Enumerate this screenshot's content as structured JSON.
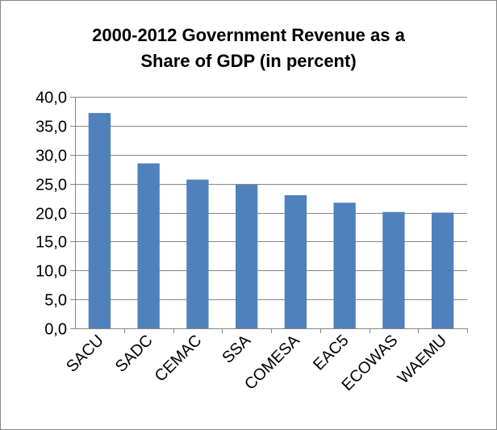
{
  "chart_data": {
    "type": "bar",
    "title_lines": [
      "2000-2012 Government Revenue as a",
      "Share of GDP (in percent)"
    ],
    "categories": [
      "SACU",
      "SADC",
      "CEMAC",
      "SSA",
      "COMESA",
      "EAC5",
      "ECOWAS",
      "WAEMU"
    ],
    "values": [
      37.2,
      28.5,
      25.7,
      24.8,
      23.0,
      21.7,
      20.1,
      20.0
    ],
    "yticks": [
      "0,0",
      "5,0",
      "10,0",
      "15,0",
      "20,0",
      "25,0",
      "30,0",
      "35,0",
      "40,0"
    ],
    "ylim": [
      0,
      40
    ],
    "grid": true,
    "legend": "none",
    "bar_color": "#4f81bd",
    "xlabel": "",
    "ylabel": ""
  }
}
